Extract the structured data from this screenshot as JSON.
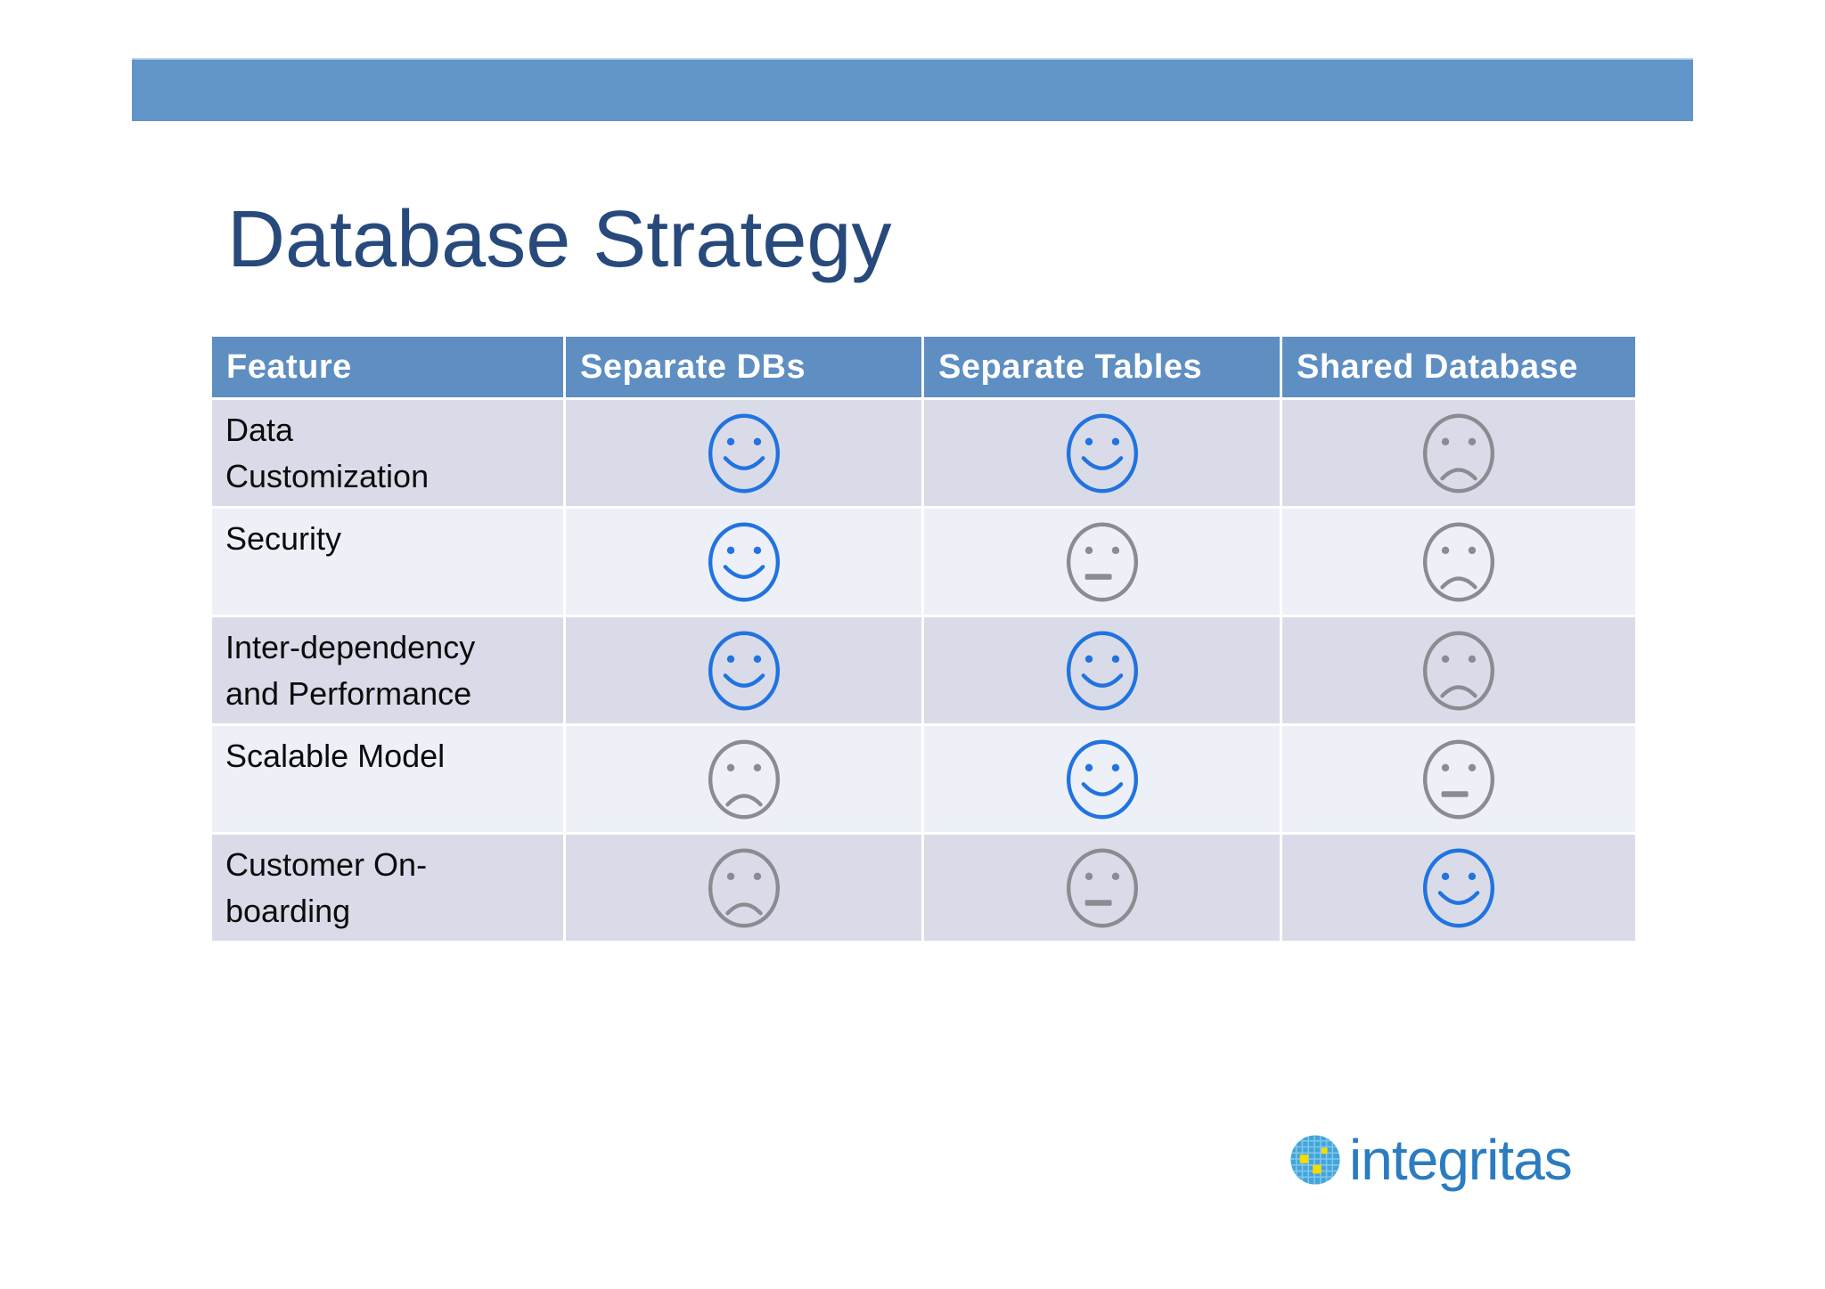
{
  "title": "Database Strategy",
  "table": {
    "headers": [
      "Feature",
      "Separate DBs",
      "Separate Tables",
      "Shared Database"
    ],
    "rows": [
      {
        "feature": "Data Customization",
        "cells": [
          "smile-blue",
          "smile-blue",
          "frown-gray"
        ]
      },
      {
        "feature": "Security",
        "cells": [
          "smile-blue",
          "neutral-gray",
          "frown-gray"
        ]
      },
      {
        "feature": "Inter-dependency and Performance",
        "cells": [
          "smile-blue",
          "smile-blue",
          "frown-gray"
        ]
      },
      {
        "feature": "Scalable Model",
        "cells": [
          "frown-gray",
          "smile-blue",
          "neutral-gray"
        ]
      },
      {
        "feature": "Customer On-boarding",
        "cells": [
          "frown-gray",
          "neutral-gray",
          "smile-blue"
        ]
      }
    ]
  },
  "logo": {
    "text": "integritas",
    "icon": "globe-grid-icon"
  },
  "colors": {
    "banner": "#6295CA",
    "header_bg": "#5E8EC2",
    "header_text": "#FFFFFF",
    "row_dark": "#D9DCE8",
    "row_light": "#EDF0F7",
    "title_text": "#27497B",
    "face_blue": "#2173E0",
    "face_gray": "#8A8C92",
    "logo_text": "#2B7CC0",
    "logo_icon_bg": "#44A4DA",
    "logo_icon_grid": "#7EC8EC",
    "logo_icon_accent": "#F6DB00"
  }
}
